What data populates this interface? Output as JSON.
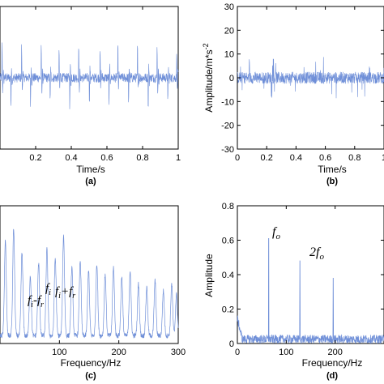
{
  "accent_color": "#6f8fd8",
  "chart_data": [
    {
      "id": "a",
      "type": "line",
      "panel_label": "(a)",
      "xlabel": "Time/s",
      "ylabel": "",
      "xlim": [
        0,
        1
      ],
      "ylim": [
        -30,
        30
      ],
      "x_ticks": [
        "0.2",
        "0.4",
        "0.6",
        "0.8",
        "1"
      ],
      "series": [
        {
          "impulse_times": [
            0.01,
            0.06,
            0.12,
            0.17,
            0.23,
            0.28,
            0.33,
            0.39,
            0.44,
            0.5,
            0.56,
            0.61,
            0.66,
            0.72,
            0.77,
            0.83,
            0.88,
            0.94,
            0.99
          ],
          "impulse_peaks": [
            22,
            18,
            20,
            17,
            21,
            16,
            19,
            18,
            22,
            17,
            20,
            19,
            23,
            18,
            21,
            20,
            22,
            17,
            19
          ],
          "noise_level": 2
        }
      ]
    },
    {
      "id": "b",
      "type": "line",
      "panel_label": "(b)",
      "xlabel": "Time/s",
      "ylabel": "Amplitude/m*s^-2",
      "xlim": [
        0,
        1
      ],
      "ylim": [
        -30,
        30
      ],
      "x_ticks": [
        "0",
        "0.2",
        "0.4",
        "0.6",
        "0.8",
        "1"
      ],
      "y_ticks": [
        "-30",
        "-20",
        "-10",
        "0",
        "10",
        "20",
        "30"
      ],
      "series": [
        {
          "noise_level": 5,
          "peak_amplitude": 9
        }
      ]
    },
    {
      "id": "c",
      "type": "line",
      "panel_label": "(c)",
      "xlabel": "Frequency/Hz",
      "ylabel": "",
      "xlim": [
        0,
        300
      ],
      "x_ticks": [
        "100",
        "200",
        "300"
      ],
      "annotations": [
        "fᵢ-fᵣ",
        "fᵢ",
        "fᵢ+fᵣ"
      ],
      "series": [
        {
          "peaks_hz": [
            9,
            23,
            37,
            51,
            65,
            79,
            93,
            107,
            121,
            135,
            149,
            163,
            177,
            191,
            205,
            219,
            233,
            247,
            261,
            275,
            289,
            297
          ],
          "peak_heights": [
            0.55,
            0.62,
            0.48,
            0.35,
            0.42,
            0.5,
            0.45,
            0.58,
            0.4,
            0.44,
            0.38,
            0.42,
            0.36,
            0.4,
            0.34,
            0.38,
            0.3,
            0.28,
            0.32,
            0.26,
            0.3,
            0.24
          ]
        }
      ]
    },
    {
      "id": "d",
      "type": "line",
      "panel_label": "(d)",
      "xlabel": "Frequency/Hz",
      "ylabel": "Amplitude",
      "xlim": [
        0,
        300
      ],
      "ylim": [
        0,
        0.8
      ],
      "x_ticks": [
        "0",
        "100",
        "200"
      ],
      "y_ticks": [
        "0",
        "0.2",
        "0.4",
        "0.6",
        "0.8"
      ],
      "annotations": [
        "fₒ",
        "2fₒ"
      ],
      "series": [
        {
          "peaks_hz": [
            64,
            128,
            196
          ],
          "peak_values": [
            0.61,
            0.48,
            0.38
          ],
          "noise_level": 0.05
        }
      ]
    }
  ]
}
